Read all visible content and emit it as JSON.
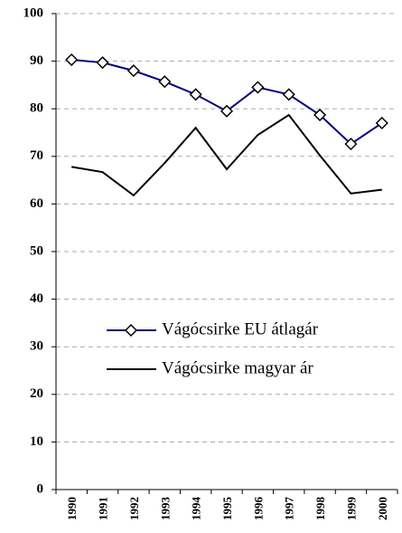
{
  "chart_data": {
    "type": "line",
    "categories": [
      "1990",
      "1991",
      "1992",
      "1993",
      "1994",
      "1995",
      "1996",
      "1997",
      "1998",
      "1999",
      "2000"
    ],
    "series": [
      {
        "name": "Vágócsirke EU átlagár",
        "color": "#000080",
        "marker": "diamond",
        "values": [
          90.3,
          89.7,
          88,
          85.7,
          83,
          79.5,
          84.5,
          83,
          78.7,
          72.6,
          77
        ]
      },
      {
        "name": "Vágócsirke magyar ár",
        "color": "#000000",
        "values": [
          67.8,
          66.7,
          61.8,
          68.6,
          76,
          67.3,
          74.5,
          78.7,
          70.2,
          62.2,
          63
        ]
      }
    ],
    "ylim": [
      0,
      100
    ],
    "yticks": [
      0,
      10,
      20,
      30,
      40,
      50,
      60,
      70,
      80,
      90,
      100
    ],
    "grid": true,
    "legend": "center"
  }
}
